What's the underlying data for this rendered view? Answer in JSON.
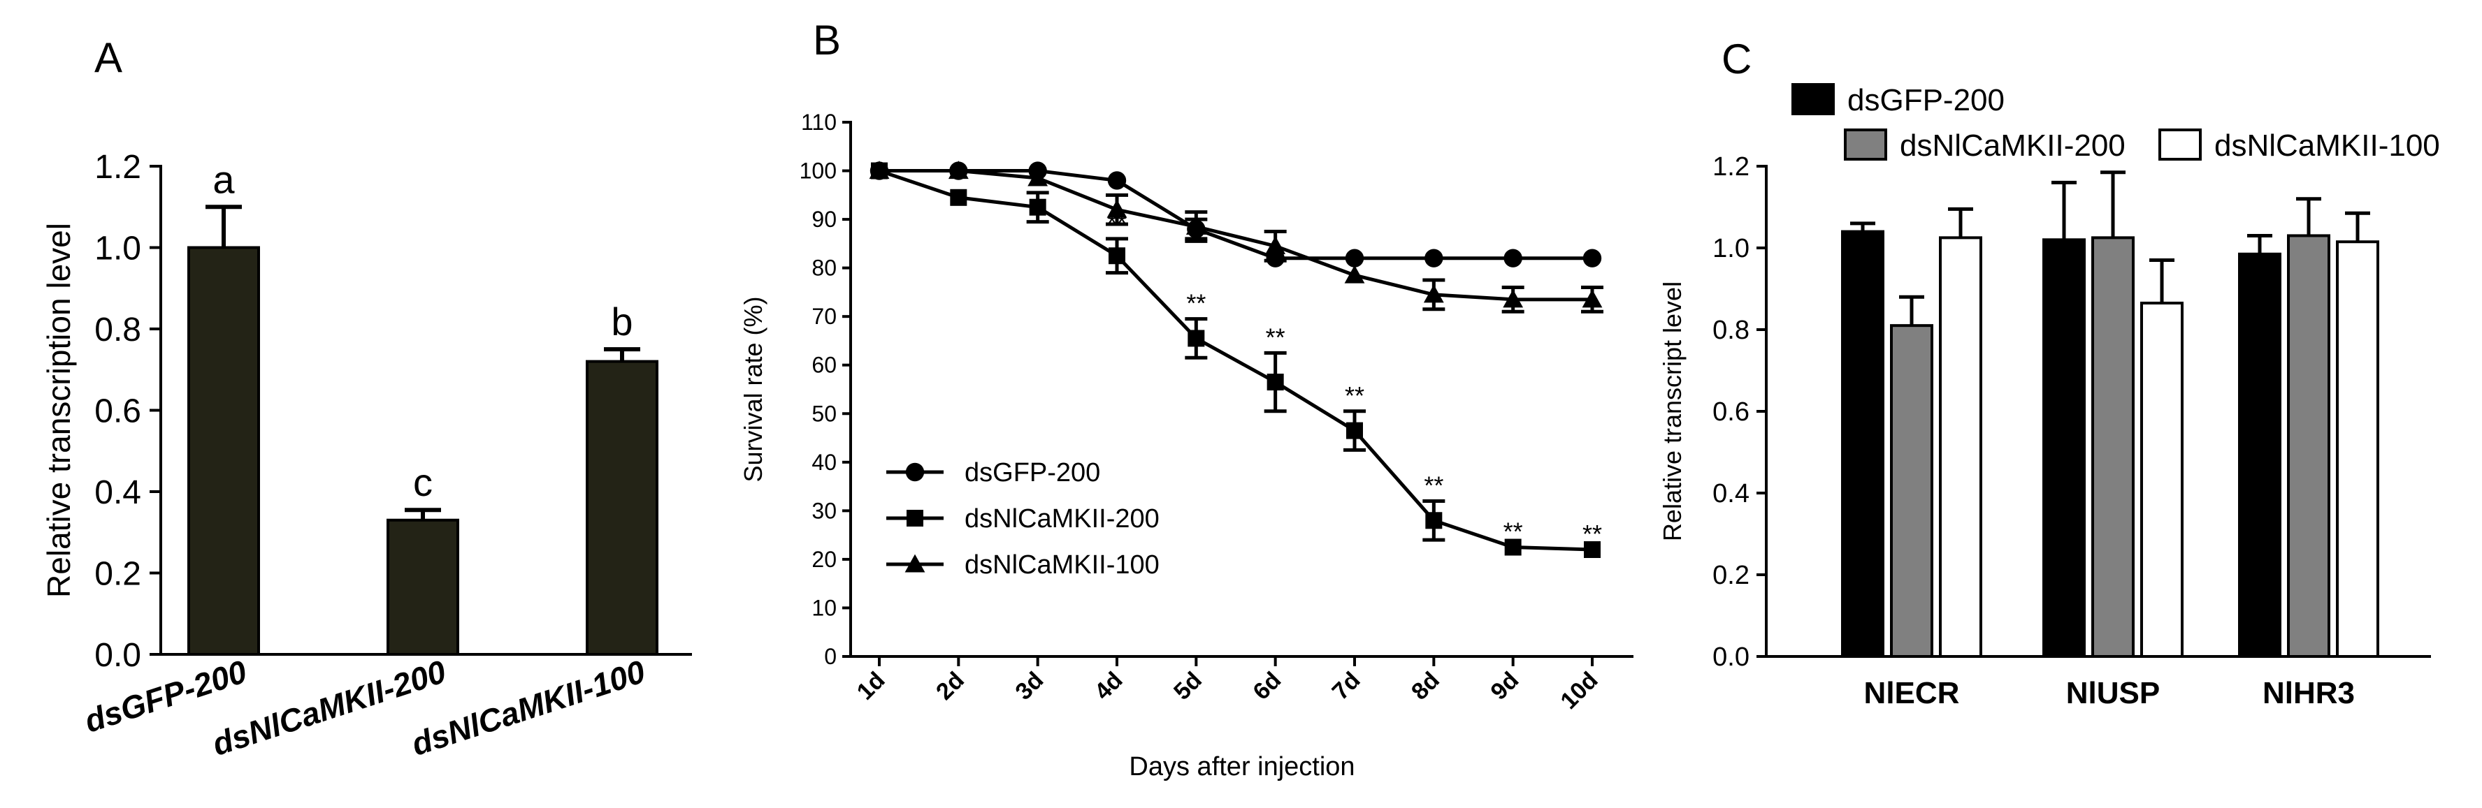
{
  "chart_data": [
    {
      "panel": "A",
      "type": "bar",
      "ylabel": "Relative transcription level",
      "ylim": [
        0,
        1.2
      ],
      "yticks": [
        "0.0",
        "0.2",
        "0.4",
        "0.6",
        "0.8",
        "1.0",
        "1.2"
      ],
      "categories": [
        "dsGFP-200",
        "dsNlCaMKII-200",
        "dsNlCaMKII-100"
      ],
      "values": [
        1.0,
        0.33,
        0.72
      ],
      "errors": [
        0.1,
        0.025,
        0.03
      ],
      "letters": [
        "a",
        "c",
        "b"
      ],
      "bar_color": "#232316"
    },
    {
      "panel": "B",
      "type": "line",
      "xlabel": "Days after injection",
      "ylabel": "Survival rate (%)",
      "ylim": [
        0,
        110
      ],
      "yticks": [
        "0",
        "10",
        "20",
        "30",
        "40",
        "50",
        "60",
        "70",
        "80",
        "90",
        "100",
        "110"
      ],
      "categories": [
        "1d",
        "2d",
        "3d",
        "4d",
        "5d",
        "6d",
        "7d",
        "8d",
        "9d",
        "10d"
      ],
      "series": [
        {
          "name": "dsGFP-200",
          "marker": "circle",
          "values": [
            100,
            100,
            100,
            98,
            88,
            82,
            82,
            82,
            82,
            82
          ],
          "errors": [
            0,
            0,
            0,
            0,
            2,
            0,
            0,
            0,
            0,
            0
          ]
        },
        {
          "name": "dsNlCaMKII-200",
          "marker": "square",
          "values": [
            100,
            94.5,
            92.5,
            82.5,
            65.5,
            56.5,
            46.5,
            28,
            22.5,
            22
          ],
          "errors": [
            0,
            0,
            3,
            3.5,
            4,
            6,
            4,
            4,
            0,
            0
          ]
        },
        {
          "name": "dsNlCaMKII-100",
          "marker": "triangle",
          "values": [
            100,
            100,
            98.5,
            92,
            88.5,
            84.5,
            78.5,
            74.5,
            73.5,
            73.5
          ],
          "errors": [
            0,
            0,
            0,
            3,
            3,
            3,
            0,
            3,
            2.5,
            2.5
          ]
        }
      ],
      "significance_label": "**",
      "significance_days": [
        "4d",
        "5d",
        "6d",
        "7d",
        "8d",
        "9d",
        "10d"
      ]
    },
    {
      "panel": "C",
      "type": "bar",
      "ylabel": "Relative transcript level",
      "ylim": [
        0,
        1.2
      ],
      "yticks": [
        "0.0",
        "0.2",
        "0.4",
        "0.6",
        "0.8",
        "1.0",
        "1.2"
      ],
      "categories": [
        "NlECR",
        "NlUSP",
        "NlHR3"
      ],
      "series": [
        {
          "name": "dsGFP-200",
          "color": "#000000",
          "values": [
            1.04,
            1.02,
            0.985
          ],
          "errors": [
            0.02,
            0.14,
            0.045
          ]
        },
        {
          "name": "dsNlCaMKII-200",
          "color": "#808080",
          "values": [
            0.81,
            1.025,
            1.03
          ],
          "errors": [
            0.07,
            0.16,
            0.09
          ]
        },
        {
          "name": "dsNlCaMKII-100",
          "color": "#ffffff",
          "values": [
            1.025,
            0.865,
            1.015
          ],
          "errors": [
            0.07,
            0.105,
            0.07
          ]
        }
      ]
    }
  ],
  "panel_labels": [
    "A",
    "B",
    "C"
  ]
}
